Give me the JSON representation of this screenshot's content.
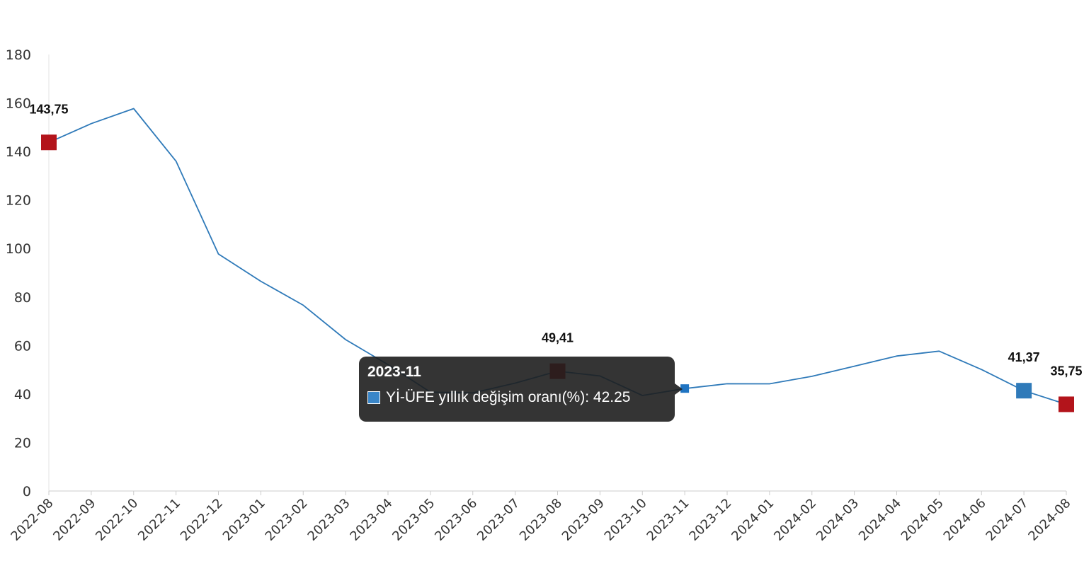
{
  "chart_data": {
    "type": "line",
    "categories": [
      "2022-08",
      "2022-09",
      "2022-10",
      "2022-11",
      "2022-12",
      "2023-01",
      "2023-02",
      "2023-03",
      "2023-04",
      "2023-05",
      "2023-06",
      "2023-07",
      "2023-08",
      "2023-09",
      "2023-10",
      "2023-11",
      "2023-12",
      "2024-01",
      "2024-02",
      "2024-03",
      "2024-04",
      "2024-05",
      "2024-06",
      "2024-07",
      "2024-08"
    ],
    "series": [
      {
        "name": "YI-ÜFE yıllık değişim oranı(%)",
        "color": "#2f7ab9",
        "values": [
          143.75,
          151.5,
          157.69,
          136.02,
          97.72,
          86.46,
          76.61,
          62.43,
          52.11,
          40.76,
          40.42,
          44.5,
          49.41,
          47.44,
          39.39,
          42.25,
          44.22,
          44.2,
          47.29,
          51.47,
          55.66,
          57.68,
          50.09,
          41.37,
          35.75
        ]
      }
    ],
    "ylim": [
      0,
      180
    ],
    "yticks": [
      0,
      20,
      40,
      60,
      80,
      100,
      120,
      140,
      160,
      180
    ],
    "grid": false,
    "legend": "none",
    "labeled_points": [
      {
        "index": 0,
        "label": "143,75",
        "marker_color": "#b3141b"
      },
      {
        "index": 12,
        "label": "49,41",
        "marker_color": "#b3141b"
      },
      {
        "index": 23,
        "label": "41,37",
        "marker_color": "#2f7ab9"
      },
      {
        "index": 24,
        "label": "35,75",
        "marker_color": "#b3141b"
      }
    ],
    "highlighted_index": 15
  },
  "tooltip": {
    "title": "2023-11",
    "series_label": "Yİ-ÜFE yıllık değişim oranı(%): 42.25",
    "swatch_color": "#3a86c8"
  }
}
